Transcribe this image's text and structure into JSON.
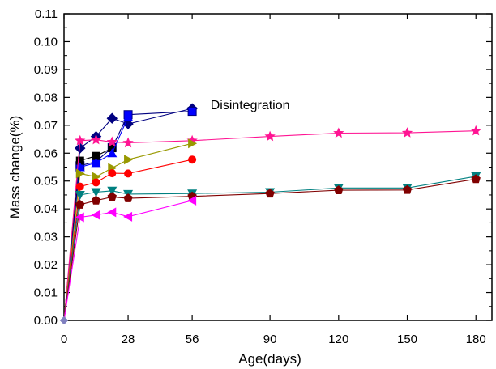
{
  "chart_data": {
    "type": "line",
    "xlabel": "Age(days)",
    "ylabel": "Mass change(%)",
    "xlim": [
      0,
      187
    ],
    "ylim": [
      0,
      0.11
    ],
    "x_ticks": [
      0,
      28,
      56,
      90,
      120,
      150,
      180
    ],
    "x_tick_labels": [
      "0",
      "28",
      "56",
      "90",
      "120",
      "150",
      "180"
    ],
    "y_ticks": [
      0,
      0.01,
      0.02,
      0.03,
      0.04,
      0.05,
      0.06,
      0.07,
      0.08,
      0.09,
      0.1,
      0.11
    ],
    "y_tick_labels": [
      "0.00",
      "0.01",
      "0.02",
      "0.03",
      "0.04",
      "0.05",
      "0.06",
      "0.07",
      "0.08",
      "0.09",
      "0.10",
      "0.11"
    ],
    "annotations": [
      {
        "text": "Disintegration",
        "x": 64,
        "y": 0.0775
      }
    ],
    "series": [
      {
        "color": "#000080",
        "marker": "diamond",
        "x": [
          0,
          7,
          14,
          21,
          28,
          56
        ],
        "y": [
          0,
          0.0618,
          0.066,
          0.0725,
          0.0705,
          0.076
        ]
      },
      {
        "color": "#000080",
        "marker": "diamond-blue",
        "x": [
          0,
          7,
          14,
          21,
          28,
          56
        ],
        "y": [
          0,
          0.0555,
          0.057,
          0.062,
          0.0738,
          0.075
        ]
      },
      {
        "color": "#000000",
        "marker": "square",
        "x": [
          0,
          7,
          14,
          21
        ],
        "y": [
          0,
          0.0573,
          0.059,
          0.0618
        ]
      },
      {
        "color": "#0000ff",
        "marker": "triangle-up",
        "x": [
          0,
          7,
          14,
          21,
          28
        ],
        "y": [
          0,
          0.055,
          0.0565,
          0.06,
          0.073
        ]
      },
      {
        "color": "#ff1493",
        "marker": "star",
        "x": [
          0,
          7,
          14,
          21,
          28,
          56,
          90,
          120,
          150,
          180
        ],
        "y": [
          0,
          0.0645,
          0.0648,
          0.064,
          0.0637,
          0.0645,
          0.066,
          0.0672,
          0.0673,
          0.068
        ]
      },
      {
        "color": "#999900",
        "marker": "triangle-right",
        "x": [
          0,
          7,
          14,
          21,
          28,
          56
        ],
        "y": [
          0,
          0.0527,
          0.0515,
          0.0547,
          0.0577,
          0.0635
        ]
      },
      {
        "color": "#ff0000",
        "marker": "circle",
        "x": [
          0,
          7,
          14,
          21,
          28,
          56
        ],
        "y": [
          0,
          0.048,
          0.0495,
          0.0528,
          0.0527,
          0.0577
        ]
      },
      {
        "color": "#008080",
        "marker": "triangle-down",
        "x": [
          0,
          7,
          14,
          21,
          28,
          56,
          90,
          120,
          150,
          180
        ],
        "y": [
          0,
          0.045,
          0.046,
          0.0465,
          0.0453,
          0.0455,
          0.046,
          0.0475,
          0.0475,
          0.0517
        ]
      },
      {
        "color": "#800000",
        "marker": "pentagon",
        "x": [
          0,
          7,
          14,
          21,
          28,
          56,
          90,
          120,
          150,
          180
        ],
        "y": [
          0,
          0.0415,
          0.043,
          0.0443,
          0.0438,
          0.0445,
          0.0455,
          0.0467,
          0.0468,
          0.0507
        ]
      },
      {
        "color": "#ff00ff",
        "marker": "triangle-left",
        "x": [
          0,
          7,
          14,
          21,
          28,
          56
        ],
        "y": [
          0,
          0.037,
          0.0378,
          0.0388,
          0.0372,
          0.043
        ]
      }
    ]
  }
}
